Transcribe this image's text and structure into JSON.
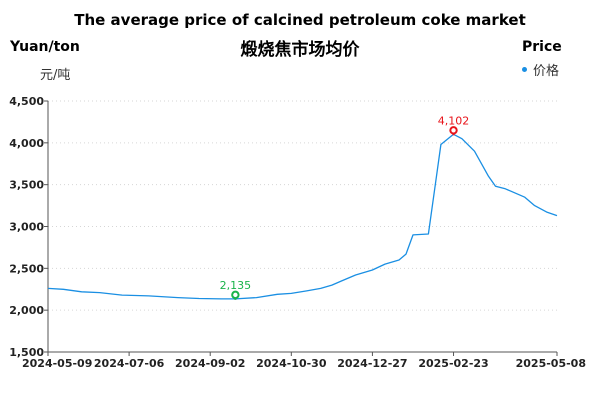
{
  "title": "The average price of calcined petroleum coke market",
  "subtitle": "煅烧焦市场均价",
  "y_unit_en": "Yuan/ton",
  "y_unit_zh": "元/吨",
  "legend_title": "Price",
  "legend_label": "价格",
  "colors": {
    "line": "#1a8fe3",
    "max_marker": "#e8141b",
    "min_marker": "#19b34a"
  },
  "chart_data": {
    "type": "line",
    "title": "The average price of calcined petroleum coke market",
    "subtitle": "煅烧焦市场均价",
    "ylabel": "Yuan/ton",
    "ylim": [
      1500,
      4500
    ],
    "yticks": [
      1500,
      2000,
      2500,
      3000,
      3500,
      4000,
      4500
    ],
    "ytick_labels": [
      "1,500",
      "2,000",
      "2,500",
      "3,000",
      "3,500",
      "4,000",
      "4,500"
    ],
    "xlim": [
      "2024-05-09",
      "2025-05-08"
    ],
    "xticks": [
      "2024-05-09",
      "2024-07-06",
      "2024-09-02",
      "2024-10-30",
      "2024-12-27",
      "2025-02-23",
      "2025-05-08"
    ],
    "grid": true,
    "legend": "top-right",
    "series": [
      {
        "name": "价格",
        "x": [
          "2024-05-09",
          "2024-05-20",
          "2024-06-02",
          "2024-06-15",
          "2024-07-01",
          "2024-07-20",
          "2024-08-10",
          "2024-08-25",
          "2024-09-10",
          "2024-09-20",
          "2024-10-05",
          "2024-10-20",
          "2024-10-30",
          "2024-11-10",
          "2024-11-20",
          "2024-11-28",
          "2024-12-05",
          "2024-12-15",
          "2024-12-27",
          "2025-01-05",
          "2025-01-15",
          "2025-01-20",
          "2025-01-25",
          "2025-02-05",
          "2025-02-10",
          "2025-02-14",
          "2025-02-23",
          "2025-03-01",
          "2025-03-10",
          "2025-03-20",
          "2025-03-25",
          "2025-04-01",
          "2025-04-15",
          "2025-04-22",
          "2025-05-01",
          "2025-05-08"
        ],
        "y": [
          2260,
          2250,
          2220,
          2210,
          2180,
          2170,
          2150,
          2140,
          2135,
          2135,
          2150,
          2190,
          2200,
          2230,
          2260,
          2300,
          2350,
          2420,
          2480,
          2550,
          2600,
          2670,
          2900,
          2910,
          3500,
          3980,
          4102,
          4050,
          3900,
          3600,
          3480,
          3450,
          3350,
          3250,
          3170,
          3130
        ]
      }
    ],
    "annotations": [
      {
        "label": "4,102",
        "x": "2025-02-23",
        "y": 4102,
        "kind": "max"
      },
      {
        "label": "2,135",
        "x": "2024-09-20",
        "y": 2135,
        "kind": "min"
      }
    ]
  }
}
